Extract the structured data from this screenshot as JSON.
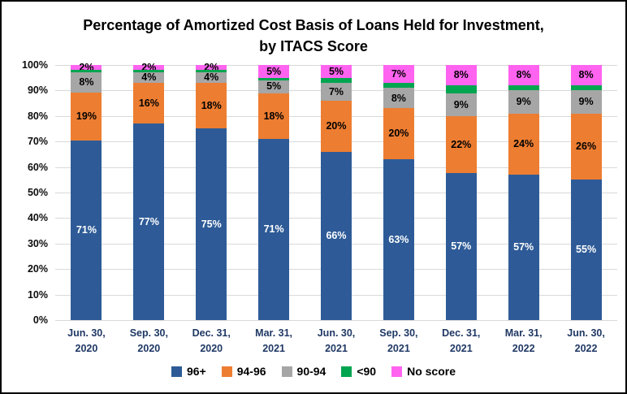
{
  "title": {
    "line1": "Percentage of Amortized Cost Basis of Loans Held for Investment,",
    "line2": "by ITACS Score"
  },
  "y_axis": {
    "ticks": [
      "100%",
      "90%",
      "80%",
      "70%",
      "60%",
      "50%",
      "40%",
      "30%",
      "20%",
      "10%",
      "0%"
    ]
  },
  "colors": {
    "blue": "#2e5b97",
    "orange": "#ed7d31",
    "gray": "#a6a6a6",
    "green": "#00a550",
    "magenta": "#ff63f0",
    "gridline": "#d9d9d9",
    "x_label": "#1f3864"
  },
  "chart_data": {
    "type": "bar",
    "stacked": true,
    "grid": true,
    "ylim": [
      0,
      100
    ],
    "categories": [
      [
        "Jun. 30,",
        "2020"
      ],
      [
        "Sep. 30,",
        "2020"
      ],
      [
        "Dec. 31,",
        "2020"
      ],
      [
        "Mar. 31,",
        "2021"
      ],
      [
        "Jun. 30,",
        "2021"
      ],
      [
        "Sep. 30,",
        "2021"
      ],
      [
        "Dec. 31,",
        "2021"
      ],
      [
        "Mar. 31,",
        "2022"
      ],
      [
        "Jun. 30,",
        "2022"
      ]
    ],
    "series": [
      {
        "name": "96+",
        "color": "#2e5b97",
        "label_color": "#ffffff",
        "values": [
          71,
          77,
          75,
          71,
          66,
          63,
          57,
          57,
          55
        ],
        "labels": [
          "71%",
          "77%",
          "75%",
          "71%",
          "66%",
          "63%",
          "57%",
          "57%",
          "55%"
        ]
      },
      {
        "name": "94-96",
        "color": "#ed7d31",
        "label_color": "#000000",
        "values": [
          19,
          16,
          18,
          18,
          20,
          20,
          22,
          24,
          26
        ],
        "labels": [
          "19%",
          "16%",
          "18%",
          "18%",
          "20%",
          "20%",
          "22%",
          "24%",
          "26%"
        ]
      },
      {
        "name": "90-94",
        "color": "#a6a6a6",
        "label_color": "#000000",
        "values": [
          8,
          4,
          4,
          5,
          7,
          8,
          9,
          9,
          9
        ],
        "labels": [
          "8%",
          "4%",
          "4%",
          "5%",
          "7%",
          "8%",
          "9%",
          "9%",
          "9%"
        ]
      },
      {
        "name": "<90",
        "color": "#00a550",
        "label_color": "#000000",
        "values": [
          1,
          1,
          1,
          1,
          2,
          2,
          3,
          2,
          2
        ],
        "labels": [
          "",
          "",
          "",
          "",
          "",
          "",
          "",
          "",
          ""
        ]
      },
      {
        "name": "No score",
        "color": "#ff63f0",
        "label_color": "#000000",
        "values": [
          2,
          2,
          2,
          5,
          5,
          7,
          8,
          8,
          8
        ],
        "labels": [
          "2%",
          "2%",
          "2%",
          "5%",
          "5%",
          "7%",
          "8%",
          "8%",
          "8%"
        ]
      }
    ],
    "legend_position": "bottom"
  }
}
